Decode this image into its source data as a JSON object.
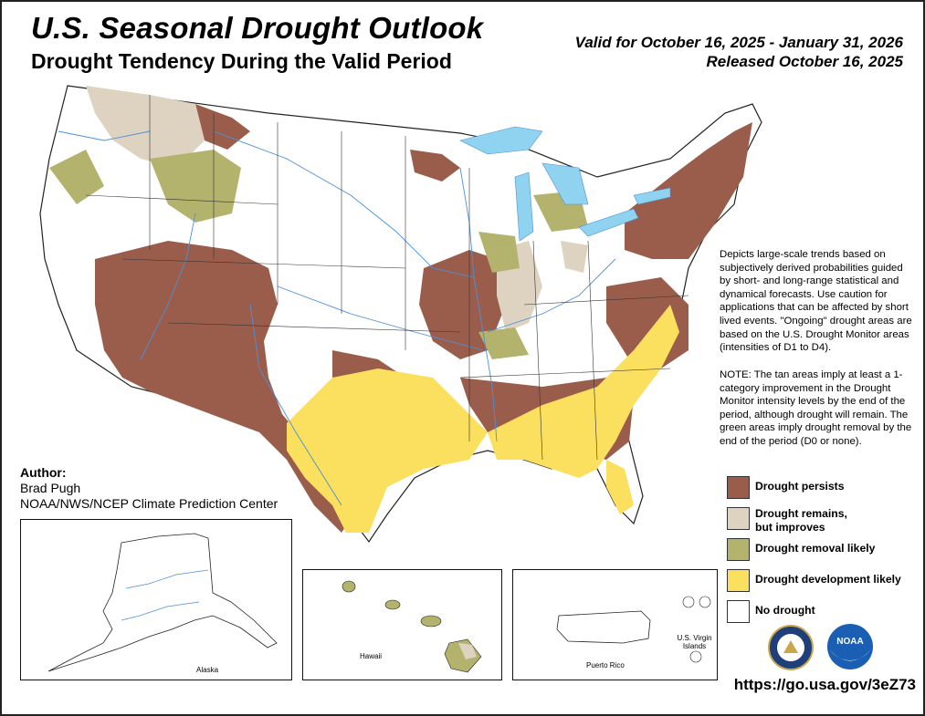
{
  "header": {
    "title": "U.S. Seasonal Drought Outlook",
    "subtitle": "Drought Tendency During the Valid Period",
    "valid_line": "Valid for October 16, 2025 - January 31, 2026",
    "released_line": "Released October 16, 2025"
  },
  "description": "Depicts large-scale trends based on subjectively derived probabilities guided by short- and long-range statistical and dynamical forecasts. Use caution for applications that can be affected by short lived events. \"Ongoing\" drought areas are based on the U.S. Drought Monitor areas (intensities of D1 to D4).",
  "note": "NOTE: The tan areas imply at least a 1-category improvement in the Drought Monitor intensity levels by the end of the period, although drought will remain. The green areas imply drought removal by the end of the period (D0 or none).",
  "legend": [
    {
      "label": "Drought persists",
      "color": "#9b5d4b"
    },
    {
      "label": "Drought remains,\nbut improves",
      "color": "#ddd3c0"
    },
    {
      "label": "Drought removal likely",
      "color": "#b3b36e"
    },
    {
      "label": "Drought development likely",
      "color": "#fbdf5e"
    },
    {
      "label": "No drought",
      "color": "#ffffff"
    }
  ],
  "author": {
    "heading": "Author:",
    "name": "Brad Pugh",
    "org": "NOAA/NWS/NCEP Climate Prediction Center"
  },
  "insets": {
    "alaska": "Alaska",
    "hawaii": "Hawaii",
    "puerto_rico": "Puerto Rico",
    "usvi": "U.S. Virgin Islands"
  },
  "logos": {
    "commerce": "seal-of-department-of-commerce",
    "noaa": "NOAA"
  },
  "url": "https://go.usa.gov/3eZ73",
  "colors": {
    "lakes": "#8fd3f0",
    "rivers": "#4a90d9"
  }
}
